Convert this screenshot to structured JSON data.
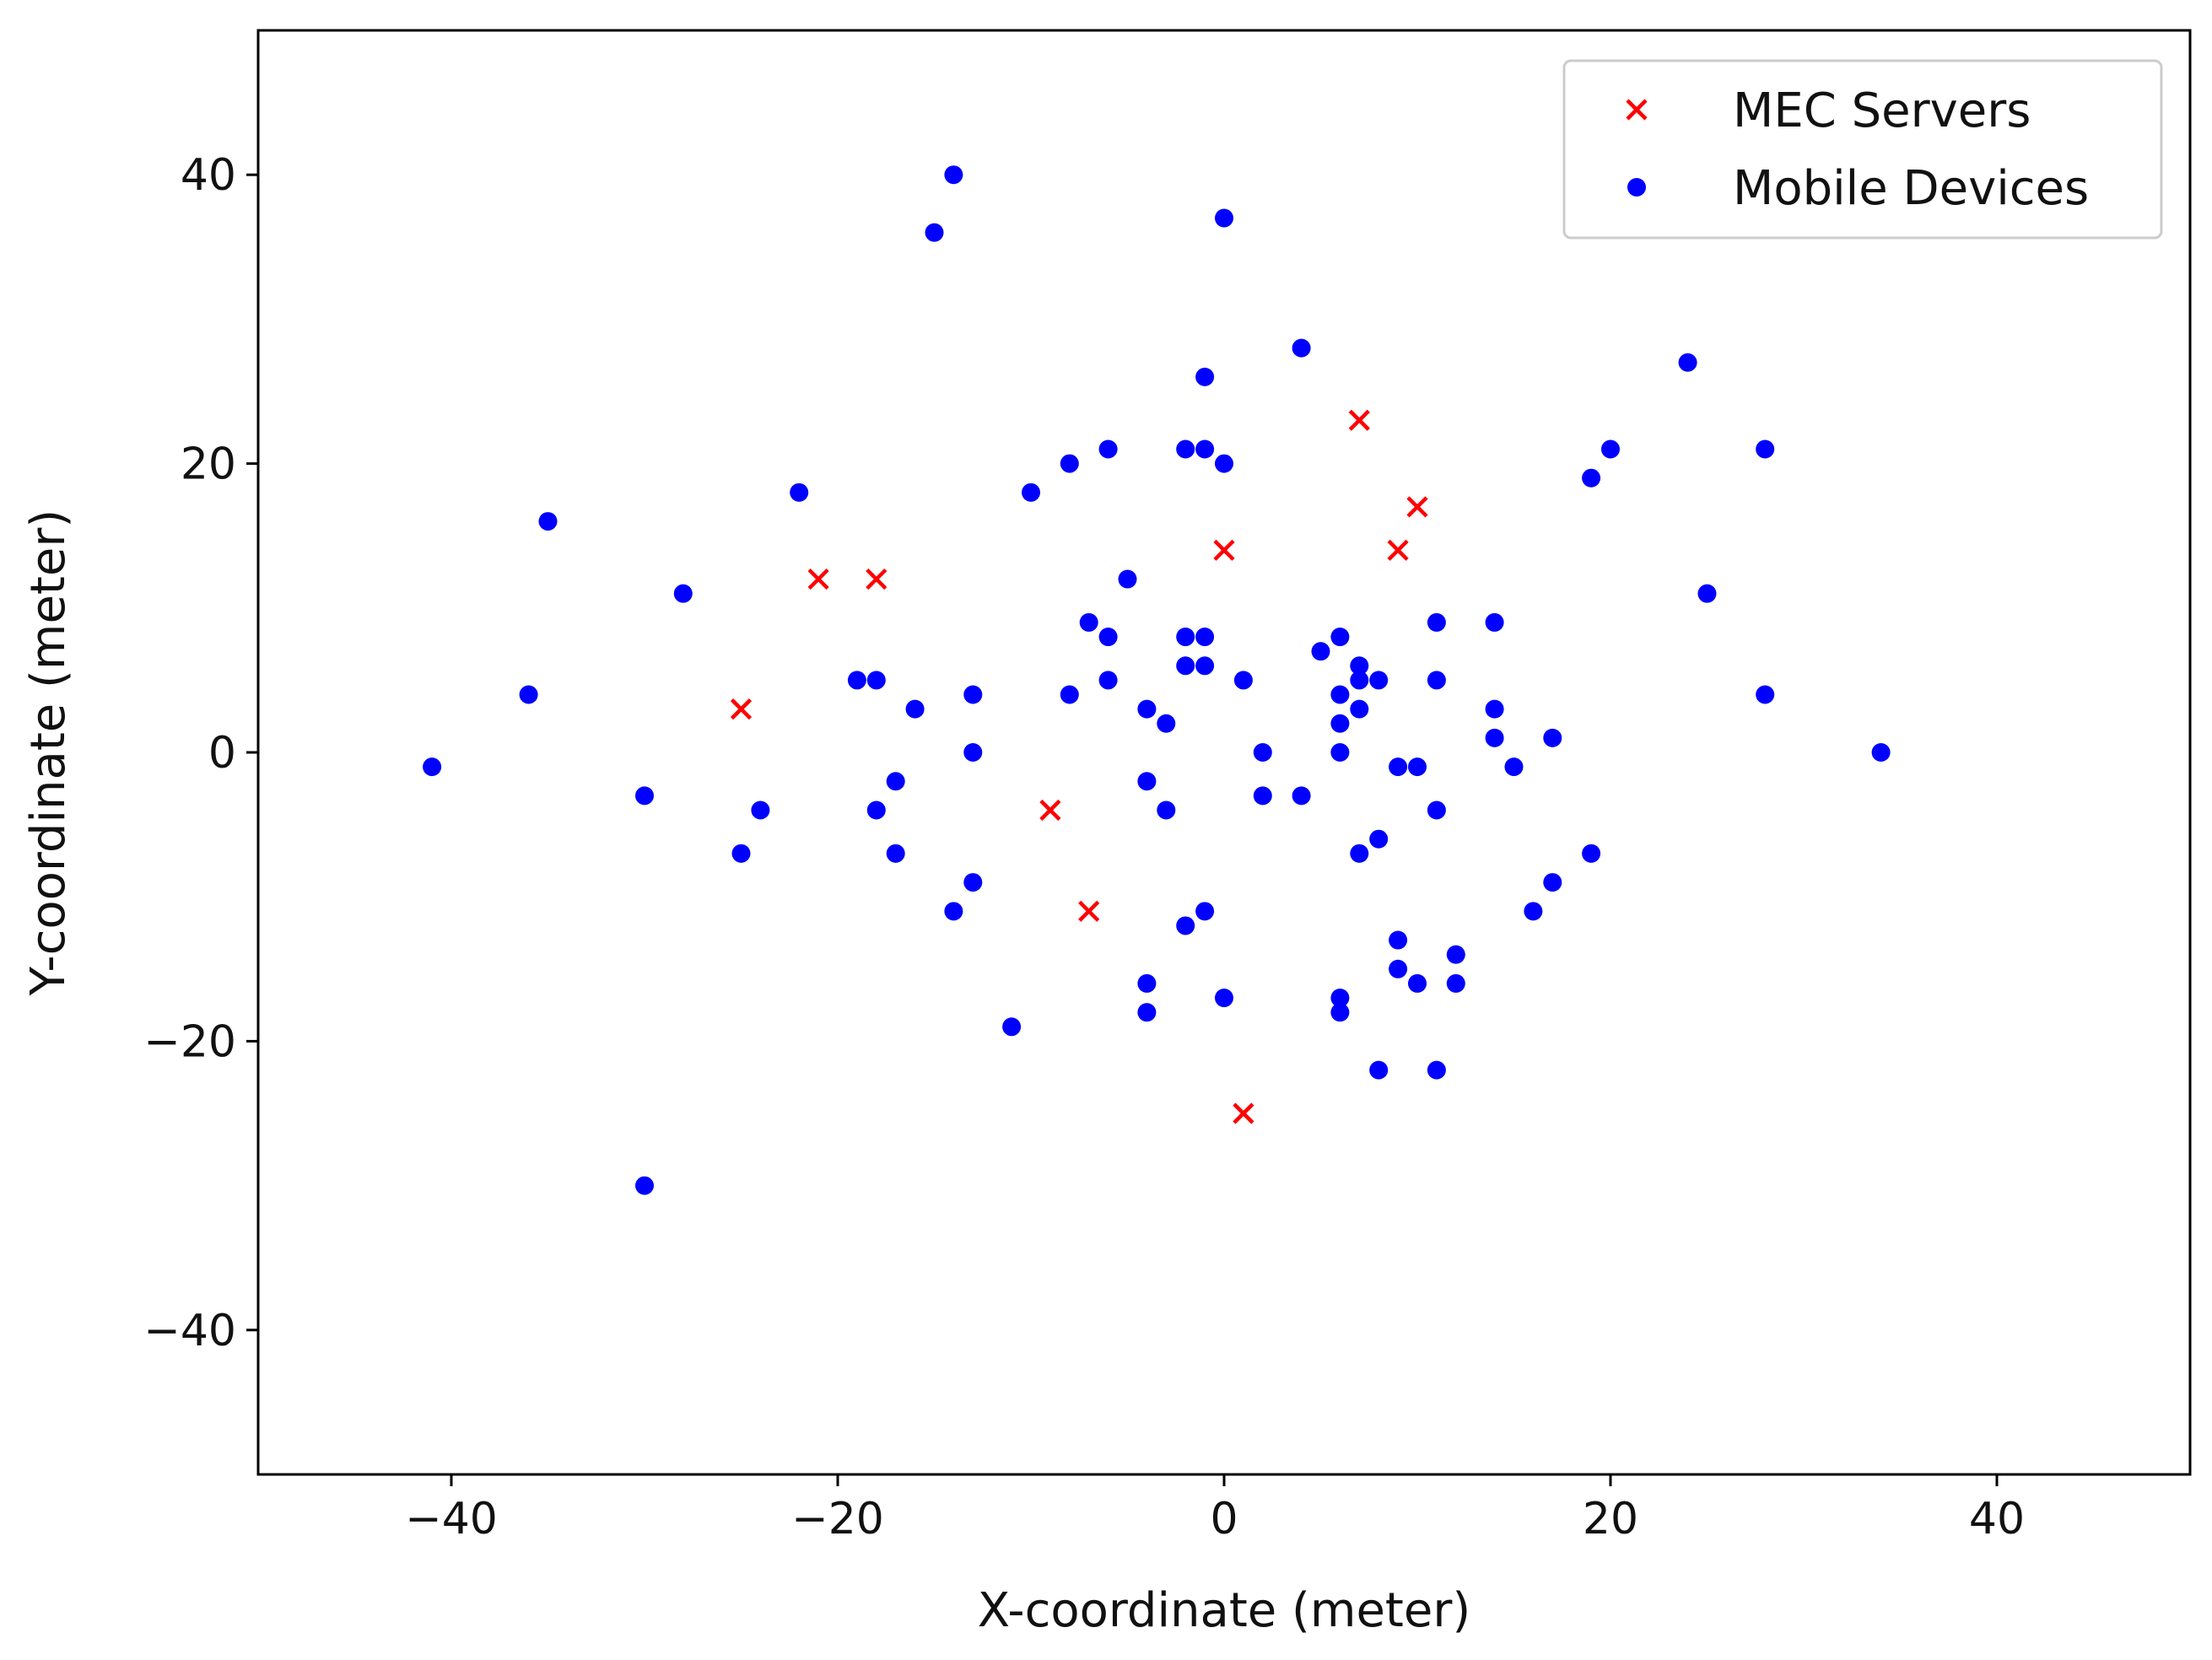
{
  "chart_data": {
    "type": "scatter",
    "xlabel": "X-coordinate (meter)",
    "ylabel": "Y-coordinate (meter)",
    "xlim": [
      -50,
      50
    ],
    "ylim": [
      -50,
      50
    ],
    "xticks": [
      -40,
      -20,
      0,
      20,
      40
    ],
    "yticks": [
      -40,
      -20,
      0,
      20,
      40
    ],
    "xtick_labels": [
      "−40",
      "−20",
      "0",
      "20",
      "40"
    ],
    "ytick_labels": [
      "−40",
      "−20",
      "0",
      "20",
      "40"
    ],
    "grid": false,
    "legend_position": "top-right",
    "series": [
      {
        "name": "MEC Servers",
        "marker": "x",
        "color": "#ff0000",
        "points": [
          [
            -25,
            3
          ],
          [
            -21,
            12
          ],
          [
            -18,
            12
          ],
          [
            -9,
            -4
          ],
          [
            -7,
            -11
          ],
          [
            0,
            14
          ],
          [
            1,
            -25
          ],
          [
            7,
            23
          ],
          [
            9,
            14
          ],
          [
            10,
            17
          ]
        ]
      },
      {
        "name": "Mobile Devices",
        "marker": "dot",
        "color": "#0000ff",
        "points": [
          [
            -14,
            40
          ],
          [
            -15,
            36
          ],
          [
            0,
            37
          ],
          [
            4,
            28
          ],
          [
            -1,
            26
          ],
          [
            24,
            27
          ],
          [
            -6,
            21
          ],
          [
            -2,
            21
          ],
          [
            -1,
            21
          ],
          [
            0,
            20
          ],
          [
            -8,
            20
          ],
          [
            -10,
            18
          ],
          [
            -22,
            18
          ],
          [
            -35,
            16
          ],
          [
            20,
            21
          ],
          [
            28,
            21
          ],
          [
            19,
            19
          ],
          [
            25,
            11
          ],
          [
            -28,
            11
          ],
          [
            -5,
            12
          ],
          [
            -7,
            9
          ],
          [
            -6,
            8
          ],
          [
            -2,
            8
          ],
          [
            -1,
            8
          ],
          [
            6,
            8
          ],
          [
            11,
            9
          ],
          [
            14,
            9
          ],
          [
            5,
            7
          ],
          [
            -2,
            6
          ],
          [
            -1,
            6
          ],
          [
            7,
            6
          ],
          [
            7,
            5
          ],
          [
            8,
            5
          ],
          [
            -19,
            5
          ],
          [
            -18,
            5
          ],
          [
            -6,
            5
          ],
          [
            1,
            5
          ],
          [
            11,
            5
          ],
          [
            -36,
            4
          ],
          [
            -13,
            4
          ],
          [
            -8,
            4
          ],
          [
            6,
            4
          ],
          [
            28,
            4
          ],
          [
            -16,
            3
          ],
          [
            -4,
            3
          ],
          [
            7,
            3
          ],
          [
            14,
            3
          ],
          [
            -3,
            2
          ],
          [
            6,
            2
          ],
          [
            14,
            1
          ],
          [
            17,
            1
          ],
          [
            -13,
            0
          ],
          [
            2,
            0
          ],
          [
            6,
            0
          ],
          [
            34,
            0
          ],
          [
            -41,
            -1
          ],
          [
            9,
            -1
          ],
          [
            10,
            -1
          ],
          [
            15,
            -1
          ],
          [
            -17,
            -2
          ],
          [
            -4,
            -2
          ],
          [
            -30,
            -3
          ],
          [
            2,
            -3
          ],
          [
            4,
            -3
          ],
          [
            -24,
            -4
          ],
          [
            -18,
            -4
          ],
          [
            -3,
            -4
          ],
          [
            11,
            -4
          ],
          [
            8,
            -6
          ],
          [
            -25,
            -7
          ],
          [
            -17,
            -7
          ],
          [
            7,
            -7
          ],
          [
            19,
            -7
          ],
          [
            -13,
            -9
          ],
          [
            17,
            -9
          ],
          [
            -14,
            -11
          ],
          [
            -1,
            -11
          ],
          [
            16,
            -11
          ],
          [
            -2,
            -12
          ],
          [
            9,
            -13
          ],
          [
            12,
            -14
          ],
          [
            9,
            -15
          ],
          [
            -4,
            -16
          ],
          [
            10,
            -16
          ],
          [
            12,
            -16
          ],
          [
            0,
            -17
          ],
          [
            6,
            -17
          ],
          [
            -4,
            -18
          ],
          [
            6,
            -18
          ],
          [
            -11,
            -19
          ],
          [
            8,
            -22
          ],
          [
            11,
            -22
          ],
          [
            -30,
            -30
          ]
        ]
      }
    ]
  }
}
